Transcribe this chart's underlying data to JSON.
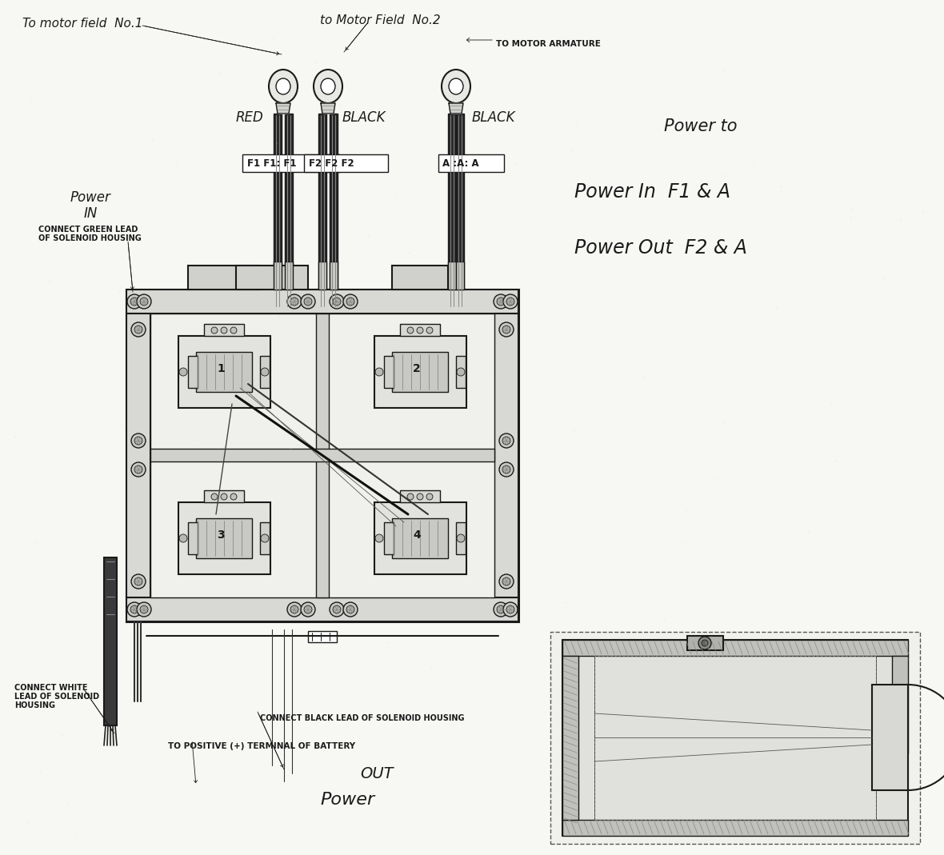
{
  "bg_color": "#f0f0ec",
  "ink": "#1a1a1a",
  "ink_light": "#555555",
  "fig_w": 11.8,
  "fig_h": 10.69,
  "dpi": 100,
  "top_left_text": "To motor field  No.1",
  "top_center_text": "to Motor Field  No.2",
  "top_right_arrow_text": "TO MOTOR ARMATURE",
  "right_power_to": "Power to",
  "right_power_in": "Power In  F1 & A",
  "right_power_out": "Power Out  F2 & A",
  "left_power": "Power",
  "left_in": "IN",
  "left_green1": "CONNECT GREEN LEAD",
  "left_green2": "OF SOLENOID HOUSING",
  "label_red": "RED",
  "label_black1": "BLACK",
  "label_black2": "BLACK",
  "label_f1": "F1 F1: F1",
  "label_f2": "F2 F2 F2",
  "label_a": "A :A: A",
  "bottom_white1": "CONNECT WHITE",
  "bottom_white2": "LEAD OF SOLENOID",
  "bottom_white3": "HOUSING",
  "bottom_black_lead": "CONNECT BLACK LEAD OF SOLENOID HOUSING",
  "bottom_battery": "TO POSITIVE (+) TERMINAL OF BATTERY",
  "bottom_out": "OUT",
  "bottom_power": "Power",
  "solenoid_labels": [
    "1",
    "2",
    "3",
    "4"
  ]
}
